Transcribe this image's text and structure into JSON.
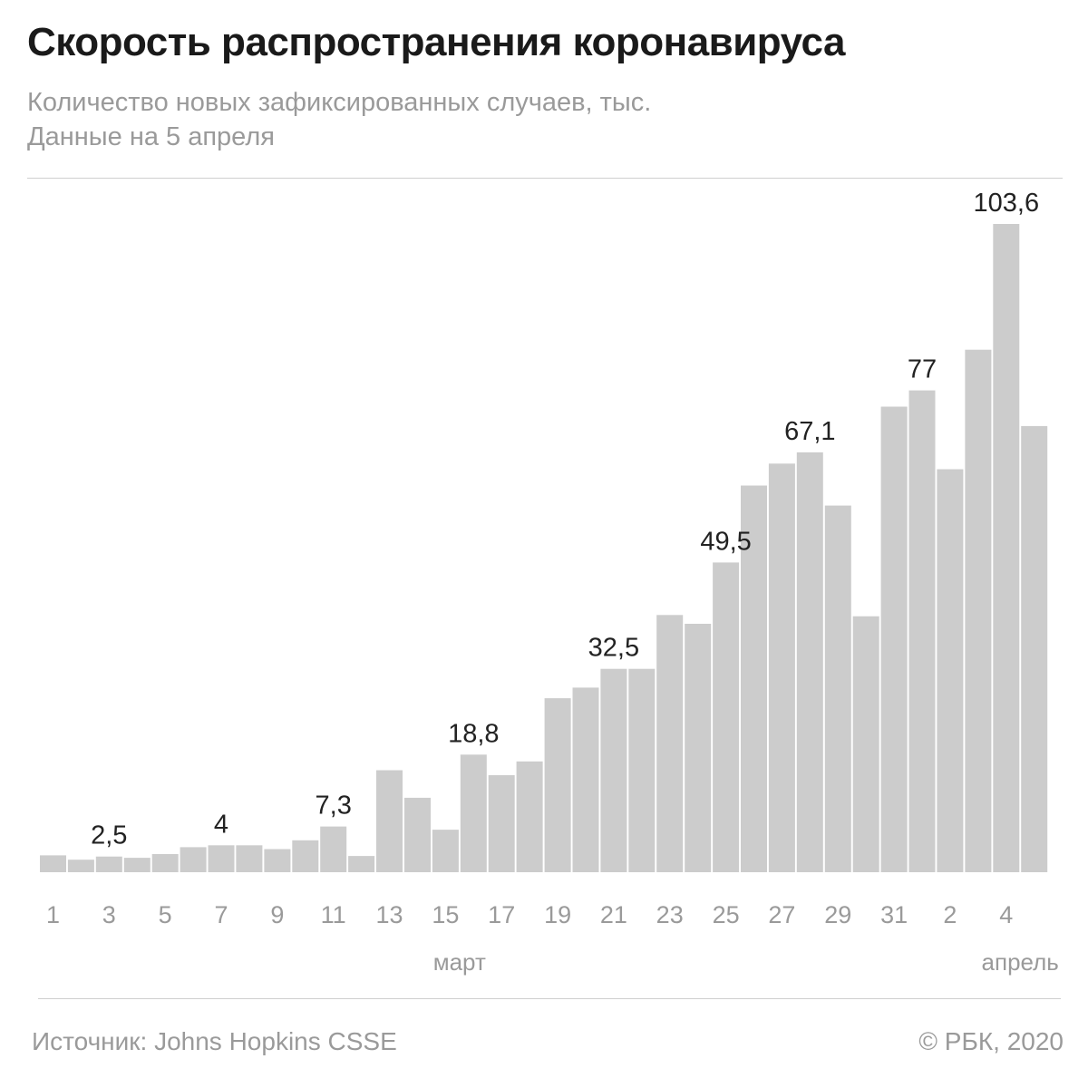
{
  "header": {
    "title": "Скорость распространения коронавируса",
    "subtitle_line1": "Количество новых зафиксированных случаев, тыс.",
    "subtitle_line2": "Данные на 5 апреля"
  },
  "footer": {
    "source": "Источник: Johns Hopkins CSSE",
    "copyright": "© РБК, 2020"
  },
  "colors": {
    "bar": "#cccccc",
    "label": "#222222",
    "muted": "#9a9a9a"
  },
  "chart_data": {
    "type": "bar",
    "title": "Скорость распространения коронавируса",
    "ylabel": "Количество новых зафиксированных случаев, тыс.",
    "ylim": [
      0,
      103.6
    ],
    "grid": false,
    "legend": "none",
    "categories": [
      "1",
      "2",
      "3",
      "4",
      "5",
      "6",
      "7",
      "8",
      "9",
      "10",
      "11",
      "12",
      "13",
      "14",
      "15",
      "16",
      "17",
      "18",
      "19",
      "20",
      "21",
      "22",
      "23",
      "24",
      "25",
      "26",
      "27",
      "28",
      "29",
      "30",
      "31",
      "1",
      "2",
      "3",
      "4",
      "5"
    ],
    "x_tick_labels": [
      "1",
      "",
      "3",
      "",
      "5",
      "",
      "7",
      "",
      "9",
      "",
      "11",
      "",
      "13",
      "",
      "15",
      "",
      "17",
      "",
      "19",
      "",
      "21",
      "",
      "23",
      "",
      "25",
      "",
      "27",
      "",
      "29",
      "",
      "31",
      "",
      "2",
      "",
      "4",
      ""
    ],
    "values": [
      2.7,
      2.0,
      2.5,
      2.3,
      2.9,
      4.0,
      4.3,
      4.3,
      3.7,
      5.1,
      7.3,
      2.6,
      16.3,
      11.9,
      6.8,
      18.8,
      15.5,
      17.7,
      27.8,
      29.5,
      32.5,
      32.5,
      41.1,
      39.7,
      49.5,
      61.8,
      65.3,
      67.1,
      58.6,
      40.9,
      74.4,
      77.0,
      64.4,
      83.5,
      103.6,
      71.3
    ],
    "data_labels": [
      "",
      "",
      "2,5",
      "",
      "",
      "",
      "4",
      "",
      "",
      "",
      "7,3",
      "",
      "",
      "",
      "",
      "18,8",
      "",
      "",
      "",
      "",
      "32,5",
      "",
      "",
      "",
      "49,5",
      "",
      "",
      "67,1",
      "",
      "",
      "",
      "77",
      "",
      "",
      "103,6",
      ""
    ],
    "month_labels": [
      {
        "text": "март",
        "index": 14.5
      },
      {
        "text": "апрель",
        "index": 34.5
      }
    ]
  }
}
